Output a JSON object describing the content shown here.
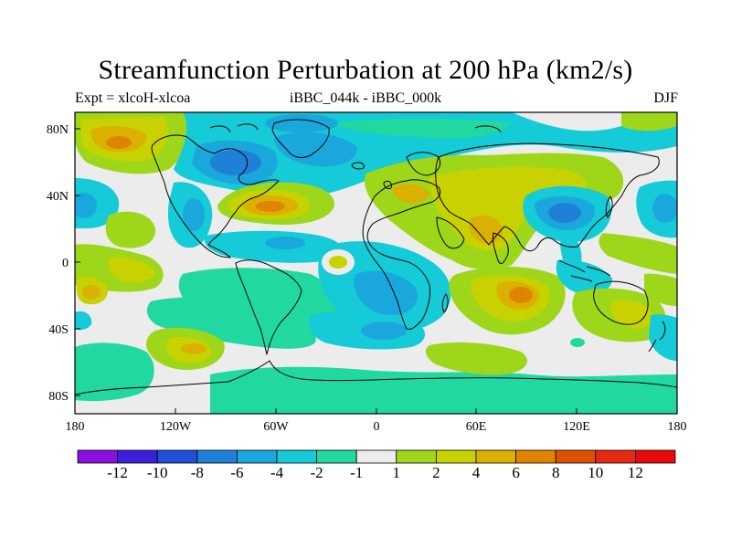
{
  "title": "Streamfunction Perturbation at 200 hPa (km2/s)",
  "left_string": "Expt = xlcoH-xlcoa",
  "center_string": "iBBC_044k - iBBC_000k",
  "right_string": "DJF",
  "x_ticks": [
    "180",
    "120W",
    "60W",
    "0",
    "60E",
    "120E",
    "180"
  ],
  "y_ticks": [
    "80N",
    "40N",
    "0",
    "40S",
    "80S"
  ],
  "colorbar": {
    "labels": [
      "-12",
      "-10",
      "-8",
      "-6",
      "-4",
      "-2",
      "-1",
      "1",
      "2",
      "4",
      "6",
      "8",
      "10",
      "12"
    ],
    "colors": [
      "#8b0fe0",
      "#3b1fdc",
      "#1e50d8",
      "#1f80d8",
      "#1aa8dc",
      "#15cbd8",
      "#20d8a0",
      "#ececec",
      "#9ed61a",
      "#c8d200",
      "#dcb000",
      "#e08400",
      "#e05000",
      "#e62a12",
      "#e80a0a"
    ]
  },
  "colors": {
    "neutral": "#ececec",
    "coast": "#000000"
  }
}
